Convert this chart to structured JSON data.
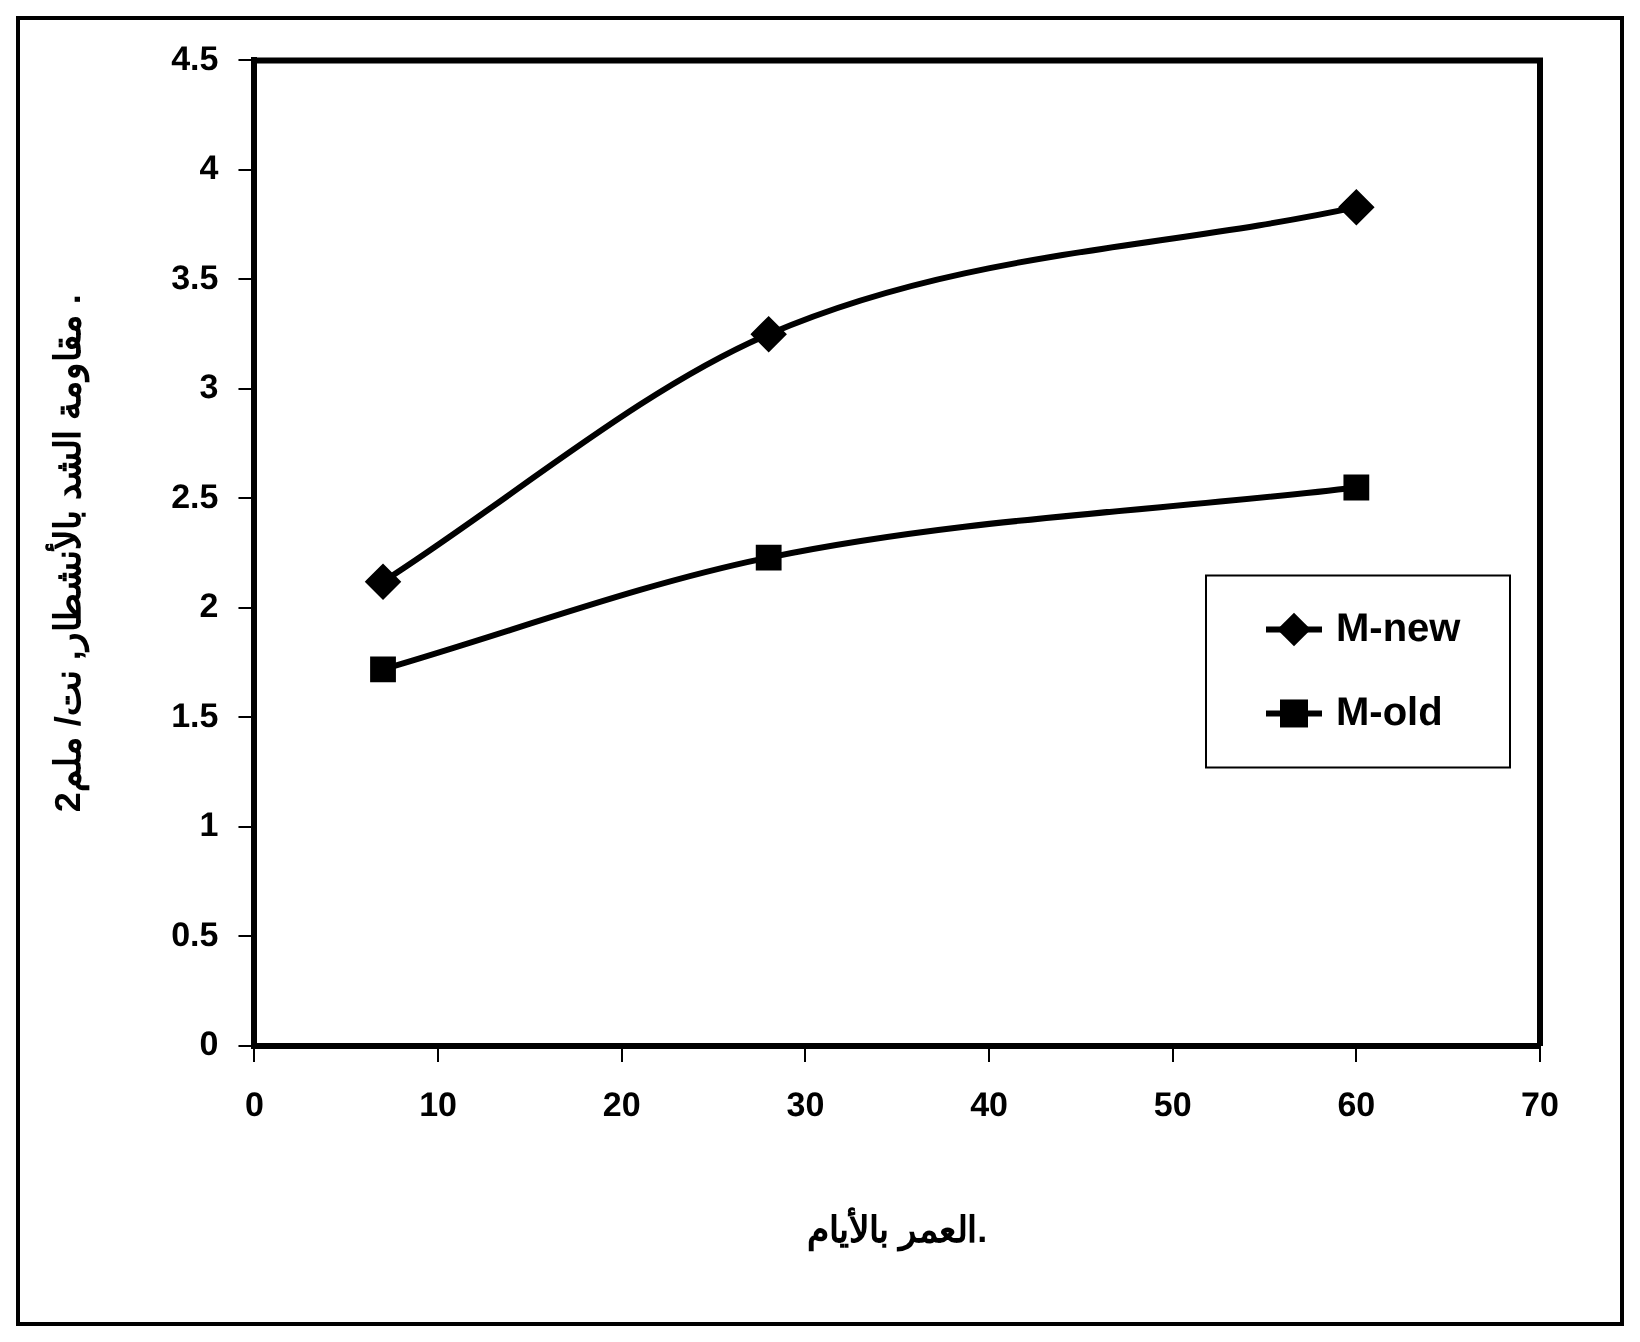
{
  "chart_data": {
    "type": "line",
    "xlabel": "العمر بالأيام.",
    "ylabel": "مقاومة الشد بالأنشطار, نت/ ملم2 .",
    "x": [
      7,
      28,
      60
    ],
    "series": [
      {
        "name": "M-new",
        "color": "#000000",
        "marker": "diamond",
        "values": [
          2.12,
          3.25,
          3.83
        ]
      },
      {
        "name": "M-old",
        "color": "#000000",
        "marker": "square",
        "values": [
          1.72,
          2.23,
          2.55
        ]
      }
    ],
    "xlim": [
      0,
      70
    ],
    "xticks": [
      0,
      10,
      20,
      30,
      40,
      50,
      60,
      70
    ],
    "ylim": [
      0,
      4.5
    ],
    "yticks": [
      0,
      0.5,
      1,
      1.5,
      2,
      2.5,
      3,
      3.5,
      4,
      4.5
    ],
    "grid": false,
    "legend": "right",
    "line_style": "solid"
  }
}
